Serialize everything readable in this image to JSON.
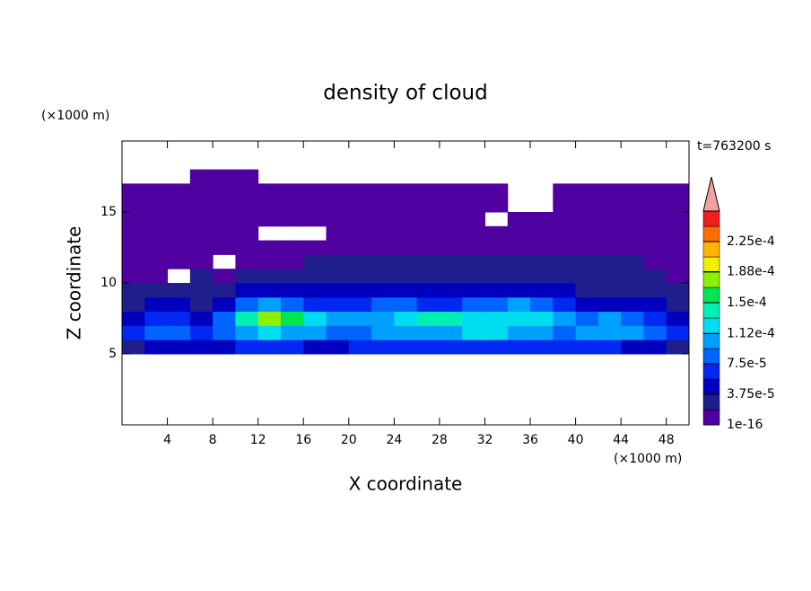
{
  "chart_data": {
    "type": "contour",
    "title": "density of cloud",
    "x_label": "X coordinate",
    "y_label": "Z coordinate",
    "x_unit": "(×1000 m)",
    "y_unit": "(×1000 m)",
    "time_label": "t=763200 s",
    "xlim": [
      0,
      50
    ],
    "ylim": [
      0,
      20
    ],
    "xticks": [
      4,
      8,
      12,
      16,
      20,
      24,
      28,
      32,
      36,
      40,
      44,
      48
    ],
    "yticks": [
      5,
      10,
      15
    ],
    "xbins": [
      0,
      2,
      4,
      6,
      8,
      10,
      12,
      14,
      16,
      18,
      20,
      22,
      24,
      26,
      28,
      30,
      32,
      34,
      36,
      38,
      40,
      42,
      44,
      46,
      48,
      50
    ],
    "zbins": [
      5,
      6,
      7,
      8,
      9,
      10,
      11,
      12,
      13,
      14,
      15,
      16,
      17,
      18
    ],
    "z": [
      [
        3e-05,
        4e-05,
        4e-05,
        4e-05,
        5e-05,
        6e-05,
        6e-05,
        6e-05,
        5e-05,
        5e-05,
        6e-05,
        6e-05,
        6e-05,
        6e-05,
        6e-05,
        6e-05,
        6e-05,
        6e-05,
        6e-05,
        6e-05,
        6e-05,
        6e-05,
        5e-05,
        4e-05,
        3e-05
      ],
      [
        6e-05,
        8e-05,
        8e-05,
        7e-05,
        9e-05,
        0.00011,
        0.00012,
        0.00011,
        0.0001,
        9e-05,
        9e-05,
        0.0001,
        0.00011,
        0.00011,
        0.00011,
        0.00012,
        0.00012,
        0.00011,
        0.0001,
        9e-05,
        0.0001,
        0.00011,
        0.0001,
        8e-05,
        6e-05
      ],
      [
        5e-05,
        6e-05,
        6e-05,
        5e-05,
        9e-05,
        0.00014,
        0.00017,
        0.00016,
        0.00013,
        0.0001,
        0.0001,
        0.00011,
        0.00013,
        0.00014,
        0.00014,
        0.00012,
        0.00012,
        0.00013,
        0.00012,
        0.0001,
        9e-05,
        0.0001,
        9e-05,
        7e-05,
        5e-05
      ],
      [
        3e-05,
        4e-05,
        4e-05,
        3e-05,
        5e-05,
        8e-05,
        0.0001,
        9e-05,
        7e-05,
        6e-05,
        7e-05,
        8e-05,
        8e-05,
        7e-05,
        7e-05,
        8e-05,
        9e-05,
        0.0001,
        9e-05,
        6e-05,
        5e-05,
        5e-05,
        5e-05,
        4e-05,
        3e-05
      ],
      [
        2e-05,
        3e-05,
        3e-05,
        2e-05,
        3e-05,
        4e-05,
        4e-05,
        4e-05,
        4e-05,
        4e-05,
        5e-05,
        5e-05,
        4e-05,
        4e-05,
        4e-05,
        5e-05,
        5e-05,
        5e-05,
        4e-05,
        4e-05,
        3e-05,
        3e-05,
        3e-05,
        3e-05,
        2e-05
      ],
      [
        1.5e-05,
        1e-05,
        null,
        2e-05,
        1e-05,
        2e-05,
        2e-05,
        2.5e-05,
        2.5e-05,
        2.5e-05,
        3e-05,
        3e-05,
        3e-05,
        3e-05,
        3e-05,
        3e-05,
        3e-05,
        3e-05,
        3e-05,
        3e-05,
        2.5e-05,
        2.5e-05,
        2e-05,
        2e-05,
        1.5e-05
      ],
      [
        1e-05,
        1e-05,
        1e-05,
        1e-05,
        null,
        1e-05,
        1.5e-05,
        1.5e-05,
        2e-05,
        2e-05,
        2e-05,
        2e-05,
        2e-05,
        2e-05,
        2e-05,
        2e-05,
        2e-05,
        2e-05,
        2e-05,
        2e-05,
        2e-05,
        2e-05,
        2e-05,
        1.5e-05,
        1e-05
      ],
      [
        1e-05,
        1e-05,
        1e-05,
        1e-05,
        1e-05,
        1e-05,
        5e-06,
        1e-05,
        1e-05,
        1e-05,
        1e-05,
        1e-05,
        1e-05,
        1e-05,
        1e-05,
        1e-05,
        1e-05,
        1e-05,
        1e-05,
        1e-05,
        1e-05,
        1e-05,
        1e-05,
        1e-05,
        1e-05
      ],
      [
        5e-06,
        5e-06,
        5e-06,
        5e-06,
        5e-06,
        5e-06,
        null,
        null,
        null,
        5e-06,
        5e-06,
        5e-06,
        5e-06,
        5e-06,
        5e-06,
        5e-06,
        5e-06,
        5e-06,
        5e-06,
        5e-06,
        5e-06,
        5e-06,
        5e-06,
        5e-06,
        5e-06
      ],
      [
        5e-06,
        5e-06,
        5e-06,
        5e-06,
        5e-06,
        5e-06,
        5e-06,
        5e-06,
        5e-06,
        5e-06,
        5e-06,
        5e-06,
        5e-06,
        5e-06,
        5e-06,
        5e-06,
        null,
        5e-06,
        5e-06,
        5e-06,
        5e-06,
        5e-06,
        5e-06,
        5e-06,
        5e-06
      ],
      [
        5e-06,
        5e-06,
        5e-06,
        5e-06,
        5e-06,
        5e-06,
        5e-06,
        5e-06,
        5e-06,
        5e-06,
        5e-06,
        5e-06,
        5e-06,
        5e-06,
        5e-06,
        5e-06,
        5e-06,
        null,
        null,
        5e-06,
        5e-06,
        5e-06,
        5e-06,
        5e-06,
        5e-06
      ],
      [
        5e-06,
        5e-06,
        5e-06,
        5e-06,
        5e-06,
        5e-06,
        5e-06,
        5e-06,
        5e-06,
        5e-06,
        5e-06,
        5e-06,
        5e-06,
        5e-06,
        5e-06,
        5e-06,
        5e-06,
        null,
        null,
        5e-06,
        5e-06,
        5e-06,
        5e-06,
        5e-06,
        5e-06
      ],
      [
        null,
        null,
        null,
        5e-06,
        5e-06,
        5e-06,
        null,
        null,
        null,
        null,
        null,
        null,
        null,
        null,
        null,
        null,
        null,
        null,
        null,
        null,
        null,
        null,
        null,
        null,
        null
      ]
    ],
    "colorbar": {
      "levels": [
        1e-16,
        1.875e-05,
        3.75e-05,
        5.625e-05,
        7.5e-05,
        9.375e-05,
        0.0001125,
        0.00013125,
        0.00015,
        0.00016875,
        0.0001875,
        0.00020625,
        0.000225,
        0.00024375,
        0.0002625
      ],
      "colors": [
        "#5000a0",
        "#1e1e8c",
        "#0000be",
        "#0028f0",
        "#0064ff",
        "#00a0ff",
        "#00dcf0",
        "#00f0b4",
        "#00e650",
        "#8cf000",
        "#f0f000",
        "#ffb400",
        "#ff6e00",
        "#f01e1e"
      ],
      "extend_color": "#f4a0a0",
      "ticks": [
        1e-16,
        {
          "value": 3.75e-05,
          "label": "3.75e-5"
        },
        {
          "value": 7.5e-05,
          "label": "7.5e-5"
        },
        {
          "value": 0.000112,
          "label": "1.12e-4"
        },
        {
          "value": 0.00015,
          "label": "1.5e-4"
        },
        {
          "value": 0.000188,
          "label": "1.88e-4"
        },
        {
          "value": 0.000225,
          "label": "2.25e-4"
        }
      ]
    }
  }
}
